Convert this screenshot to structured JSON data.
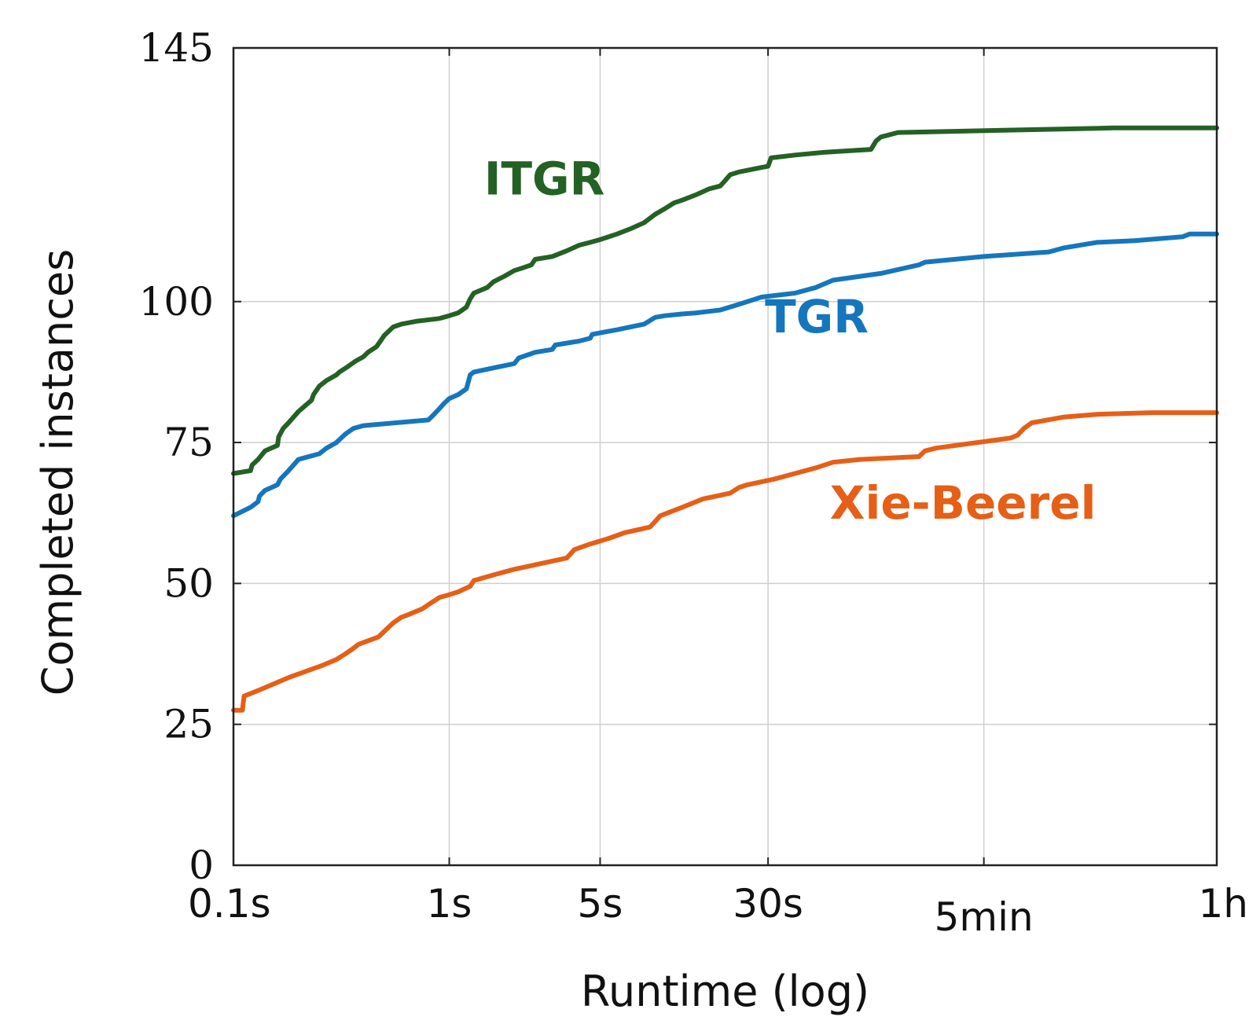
{
  "chart_data": {
    "type": "line",
    "title": "",
    "xlabel": "Runtime (log)",
    "ylabel": "Completed instances",
    "xscale": "log",
    "xlim": [
      0.1,
      3600
    ],
    "ylim": [
      0,
      145
    ],
    "grid": true,
    "legend": "inline labels",
    "yticks": [
      {
        "value": 0,
        "label": "0"
      },
      {
        "value": 25,
        "label": "25"
      },
      {
        "value": 50,
        "label": "50"
      },
      {
        "value": 75,
        "label": "75"
      },
      {
        "value": 100,
        "label": "100"
      },
      {
        "value": 145,
        "label": "145"
      }
    ],
    "xticks": [
      {
        "value": 0.1,
        "label": "0.1s"
      },
      {
        "value": 1,
        "label": "1s"
      },
      {
        "value": 5,
        "label": "5s"
      },
      {
        "value": 30,
        "label": "30s"
      },
      {
        "value": 300,
        "label": "5min"
      },
      {
        "value": 3600,
        "label": "1h"
      }
    ],
    "series": [
      {
        "name": "ITGR",
        "color": "#246124",
        "label_at": {
          "x": 1.45,
          "y": 119
        },
        "x": [
          0.1,
          0.12,
          0.122,
          0.13,
          0.14,
          0.16,
          0.162,
          0.17,
          0.18,
          0.2,
          0.23,
          0.235,
          0.25,
          0.27,
          0.3,
          0.31,
          0.34,
          0.37,
          0.4,
          0.42,
          0.46,
          0.48,
          0.5,
          0.55,
          0.6,
          0.7,
          0.9,
          1.0,
          1.1,
          1.2,
          1.25,
          1.3,
          1.5,
          1.6,
          1.8,
          2.0,
          2.2,
          2.4,
          2.5,
          3.0,
          3.5,
          4.0,
          4.5,
          5.0,
          6.0,
          7.0,
          8.0,
          9.0,
          10.0,
          11.0,
          12.0,
          14.0,
          16.0,
          18.0,
          19.0,
          20.0,
          22.0,
          28.0,
          30.0,
          31.0,
          40.0,
          55.0,
          90.0,
          95.0,
          100.0,
          120.0,
          1200.0,
          3600.0
        ],
        "y": [
          69.5,
          70.0,
          71.0,
          72.0,
          73.5,
          74.5,
          76.0,
          77.5,
          78.5,
          80.5,
          82.5,
          83.5,
          85.0,
          86.0,
          87.0,
          87.5,
          88.5,
          89.5,
          90.2,
          91.0,
          92.0,
          93.0,
          94.0,
          95.5,
          96.0,
          96.5,
          97.0,
          97.5,
          98.0,
          99.0,
          100.5,
          101.5,
          102.5,
          103.5,
          104.5,
          105.5,
          106.0,
          106.5,
          107.5,
          108.0,
          109.0,
          110.0,
          110.5,
          111.0,
          112.0,
          113.0,
          114.0,
          115.5,
          116.5,
          117.5,
          118.0,
          119.0,
          120.0,
          120.5,
          121.5,
          122.5,
          123.0,
          123.8,
          124.0,
          125.5,
          126.0,
          126.5,
          127.0,
          128.5,
          129.2,
          130.0,
          130.8,
          130.8
        ]
      },
      {
        "name": "TGR",
        "color": "#1576bd",
        "label_at": {
          "x": 29.0,
          "y": 94.5
        },
        "x": [
          0.1,
          0.12,
          0.13,
          0.132,
          0.14,
          0.15,
          0.16,
          0.165,
          0.18,
          0.2,
          0.25,
          0.27,
          0.3,
          0.33,
          0.36,
          0.4,
          0.8,
          0.85,
          0.9,
          0.95,
          1.0,
          1.1,
          1.2,
          1.25,
          1.3,
          1.5,
          2.0,
          2.1,
          2.5,
          3.0,
          3.1,
          4.0,
          4.5,
          4.6,
          6.0,
          8.0,
          9.0,
          10.0,
          12.0,
          14.0,
          18.0,
          22.0,
          28.0,
          40.0,
          50.0,
          60.0,
          100.0,
          150.0,
          160.0,
          300.0,
          600.0,
          700.0,
          1000.0,
          1500.0,
          2500.0,
          2700.0,
          3600.0
        ],
        "y": [
          62.0,
          63.5,
          64.5,
          65.5,
          66.5,
          67.0,
          67.5,
          68.5,
          70.0,
          72.0,
          73.0,
          74.0,
          75.0,
          76.5,
          77.5,
          78.0,
          79.0,
          80.0,
          81.0,
          82.0,
          82.8,
          83.5,
          84.5,
          87.0,
          87.5,
          88.0,
          89.0,
          90.0,
          91.0,
          91.5,
          92.3,
          93.0,
          93.5,
          94.2,
          95.0,
          96.0,
          97.2,
          97.5,
          97.8,
          98.0,
          98.5,
          99.5,
          100.8,
          101.5,
          102.5,
          103.8,
          105.0,
          106.5,
          107.0,
          108.0,
          108.8,
          109.5,
          110.5,
          110.8,
          111.5,
          112.0,
          112.0
        ]
      },
      {
        "name": "Xie-Beerel",
        "color": "#e65f17",
        "label_at": {
          "x": 58.0,
          "y": 61.5
        },
        "x": [
          0.1,
          0.11,
          0.112,
          0.13,
          0.15,
          0.18,
          0.22,
          0.26,
          0.3,
          0.33,
          0.36,
          0.38,
          0.47,
          0.5,
          0.55,
          0.6,
          0.65,
          0.75,
          0.82,
          0.9,
          1.0,
          1.1,
          1.25,
          1.3,
          1.6,
          2.0,
          3.5,
          3.7,
          3.8,
          4.5,
          5.5,
          6.5,
          8.5,
          9.0,
          9.5,
          12.0,
          15.0,
          20.0,
          22.0,
          24.0,
          32.0,
          40.0,
          50.0,
          60.0,
          80.0,
          150.0,
          160.0,
          180.0,
          350.0,
          400.0,
          430.0,
          460.0,
          500.0,
          700.0,
          1000.0,
          1800.0,
          3600.0
        ],
        "y": [
          27.5,
          27.5,
          30.0,
          31.0,
          32.0,
          33.3,
          34.5,
          35.5,
          36.5,
          37.5,
          38.5,
          39.2,
          40.5,
          41.5,
          43.0,
          44.0,
          44.5,
          45.5,
          46.5,
          47.5,
          48.0,
          48.5,
          49.5,
          50.5,
          51.5,
          52.5,
          54.5,
          55.5,
          56.0,
          57.0,
          58.0,
          59.0,
          60.0,
          61.0,
          62.0,
          63.5,
          65.0,
          66.0,
          67.0,
          67.5,
          68.5,
          69.5,
          70.5,
          71.5,
          72.0,
          72.5,
          73.5,
          74.0,
          75.5,
          75.8,
          76.3,
          77.5,
          78.5,
          79.5,
          80.0,
          80.3,
          80.3
        ]
      }
    ]
  }
}
